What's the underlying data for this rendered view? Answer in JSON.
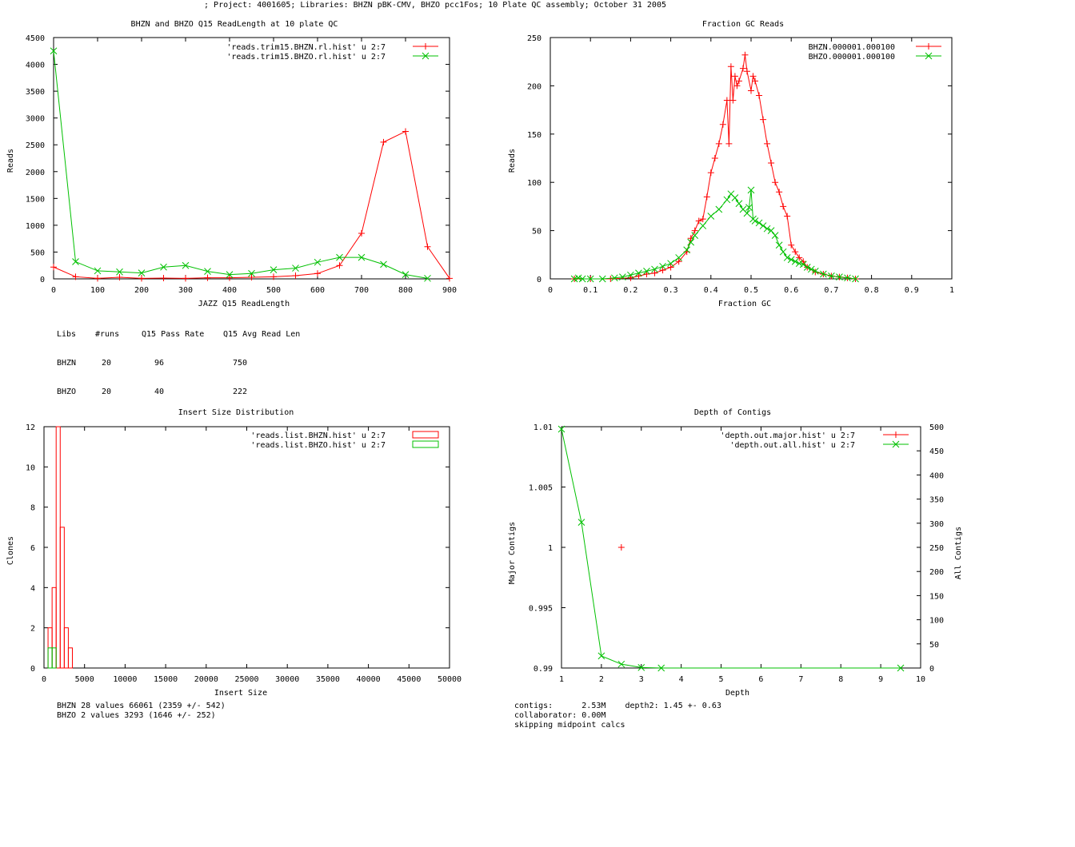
{
  "page_title": "; Project: 4001605; Libraries: BHZN pBK-CMV, BHZO pcc1Fos; 10 Plate QC assembly; October 31 2005",
  "colors": {
    "red": "#ff0000",
    "green": "#00c000",
    "axis": "#000000"
  },
  "chart_data": [
    {
      "type": "line",
      "title": "BHZN and BHZO Q15 ReadLength at 10 plate QC",
      "xlabel": "JAZZ Q15 ReadLength",
      "ylabel": "Reads",
      "xlim": [
        0,
        900
      ],
      "ylim": [
        0,
        4500
      ],
      "xticks": [
        0,
        100,
        200,
        300,
        400,
        500,
        600,
        700,
        800,
        900
      ],
      "yticks": [
        0,
        500,
        1000,
        1500,
        2000,
        2500,
        3000,
        3500,
        4000,
        4500
      ],
      "x": [
        0,
        50,
        100,
        150,
        200,
        250,
        300,
        350,
        400,
        450,
        500,
        550,
        600,
        650,
        700,
        750,
        800,
        850,
        900
      ],
      "series": [
        {
          "name": "'reads.trim15.BHZN.rl.hist' u 2:7",
          "color": "#ff0000",
          "marker": "plus",
          "values": [
            220,
            40,
            10,
            30,
            10,
            15,
            10,
            20,
            20,
            30,
            40,
            60,
            100,
            250,
            850,
            2550,
            2750,
            600,
            10
          ]
        },
        {
          "name": "'reads.trim15.BHZO.rl.hist' u 2:7",
          "color": "#00c000",
          "marker": "cross",
          "values": [
            4250,
            320,
            150,
            130,
            110,
            220,
            250,
            140,
            80,
            100,
            170,
            200,
            310,
            400,
            400,
            270,
            80,
            10,
            null
          ]
        }
      ],
      "stats": {
        "header": [
          "Libs",
          "#runs",
          "Q15 Pass Rate",
          "Q15 Avg Read Len"
        ],
        "rows": [
          [
            "BHZN",
            "20",
            "96",
            "750"
          ],
          [
            "BHZO",
            "20",
            "40",
            "222"
          ]
        ]
      }
    },
    {
      "type": "line",
      "title": "Fraction GC Reads",
      "xlabel": "Fraction GC",
      "ylabel": "Reads",
      "xlim": [
        0,
        1
      ],
      "ylim": [
        0,
        250
      ],
      "xticks": [
        "0",
        "0.1",
        "0.2",
        "0.3",
        "0.4",
        "0.5",
        "0.6",
        "0.7",
        "0.8",
        "0.9",
        "1"
      ],
      "yticks": [
        0,
        50,
        100,
        150,
        200,
        250
      ],
      "series": [
        {
          "name": "BHZN.000001.000100",
          "color": "#ff0000",
          "marker": "plus",
          "points": [
            [
              0.06,
              0
            ],
            [
              0.1,
              0
            ],
            [
              0.15,
              0
            ],
            [
              0.2,
              1
            ],
            [
              0.22,
              3
            ],
            [
              0.24,
              5
            ],
            [
              0.26,
              6
            ],
            [
              0.28,
              9
            ],
            [
              0.3,
              12
            ],
            [
              0.32,
              18
            ],
            [
              0.34,
              28
            ],
            [
              0.35,
              42
            ],
            [
              0.36,
              50
            ],
            [
              0.37,
              60
            ],
            [
              0.38,
              62
            ],
            [
              0.39,
              85
            ],
            [
              0.4,
              110
            ],
            [
              0.41,
              125
            ],
            [
              0.42,
              140
            ],
            [
              0.43,
              160
            ],
            [
              0.44,
              185
            ],
            [
              0.445,
              140
            ],
            [
              0.45,
              220
            ],
            [
              0.455,
              185
            ],
            [
              0.46,
              210
            ],
            [
              0.465,
              200
            ],
            [
              0.47,
              205
            ],
            [
              0.48,
              218
            ],
            [
              0.485,
              232
            ],
            [
              0.49,
              215
            ],
            [
              0.5,
              195
            ],
            [
              0.505,
              210
            ],
            [
              0.51,
              205
            ],
            [
              0.52,
              190
            ],
            [
              0.53,
              165
            ],
            [
              0.54,
              140
            ],
            [
              0.55,
              120
            ],
            [
              0.56,
              100
            ],
            [
              0.57,
              90
            ],
            [
              0.58,
              75
            ],
            [
              0.59,
              65
            ],
            [
              0.6,
              35
            ],
            [
              0.61,
              28
            ],
            [
              0.62,
              22
            ],
            [
              0.63,
              18
            ],
            [
              0.64,
              12
            ],
            [
              0.66,
              7
            ],
            [
              0.68,
              5
            ],
            [
              0.7,
              3
            ],
            [
              0.72,
              2
            ],
            [
              0.74,
              1
            ],
            [
              0.76,
              0
            ]
          ]
        },
        {
          "name": "BHZO.000001.000100",
          "color": "#00c000",
          "marker": "cross",
          "points": [
            [
              0.06,
              0
            ],
            [
              0.07,
              1
            ],
            [
              0.08,
              0
            ],
            [
              0.1,
              0
            ],
            [
              0.13,
              0
            ],
            [
              0.16,
              1
            ],
            [
              0.18,
              2
            ],
            [
              0.2,
              4
            ],
            [
              0.22,
              6
            ],
            [
              0.24,
              8
            ],
            [
              0.26,
              10
            ],
            [
              0.28,
              13
            ],
            [
              0.3,
              16
            ],
            [
              0.32,
              22
            ],
            [
              0.34,
              30
            ],
            [
              0.35,
              38
            ],
            [
              0.36,
              45
            ],
            [
              0.38,
              55
            ],
            [
              0.4,
              65
            ],
            [
              0.42,
              72
            ],
            [
              0.44,
              82
            ],
            [
              0.45,
              88
            ],
            [
              0.46,
              84
            ],
            [
              0.47,
              78
            ],
            [
              0.48,
              72
            ],
            [
              0.49,
              68
            ],
            [
              0.495,
              74
            ],
            [
              0.5,
              92
            ],
            [
              0.505,
              62
            ],
            [
              0.51,
              60
            ],
            [
              0.52,
              58
            ],
            [
              0.53,
              55
            ],
            [
              0.54,
              52
            ],
            [
              0.55,
              50
            ],
            [
              0.56,
              45
            ],
            [
              0.57,
              35
            ],
            [
              0.58,
              28
            ],
            [
              0.59,
              22
            ],
            [
              0.6,
              20
            ],
            [
              0.61,
              18
            ],
            [
              0.62,
              16
            ],
            [
              0.63,
              15
            ],
            [
              0.64,
              12
            ],
            [
              0.65,
              10
            ],
            [
              0.66,
              8
            ],
            [
              0.68,
              5
            ],
            [
              0.7,
              3
            ],
            [
              0.72,
              2
            ],
            [
              0.74,
              1
            ],
            [
              0.76,
              0
            ]
          ]
        }
      ]
    },
    {
      "type": "histogram",
      "title": "Insert Size Distribution",
      "xlabel": "Insert Size",
      "ylabel": "Clones",
      "xlim": [
        0,
        50000
      ],
      "ylim": [
        0,
        12
      ],
      "xticks": [
        0,
        5000,
        10000,
        15000,
        20000,
        25000,
        30000,
        35000,
        40000,
        45000,
        50000
      ],
      "yticks": [
        0,
        2,
        4,
        6,
        8,
        10,
        12
      ],
      "bin_width": 500,
      "series": [
        {
          "name": "'reads.list.BHZN.hist' u 2:7",
          "color": "#ff0000",
          "bins": [
            [
              500,
              0
            ],
            [
              1000,
              2
            ],
            [
              1500,
              4
            ],
            [
              2000,
              12
            ],
            [
              2500,
              7
            ],
            [
              3000,
              2
            ],
            [
              3500,
              1
            ],
            [
              4000,
              0
            ]
          ]
        },
        {
          "name": "'reads.list.BHZO.hist' u 2:7",
          "color": "#00c000",
          "bins": [
            [
              1000,
              1
            ],
            [
              1500,
              1
            ],
            [
              2000,
              0
            ]
          ]
        }
      ],
      "notes": [
        "BHZN 28 values 66061 (2359 +/- 542)",
        "BHZO 2 values 3293 (1646 +/- 252)"
      ]
    },
    {
      "type": "line",
      "title": "Depth of Contigs",
      "xlabel": "Depth",
      "ylabel": "Major Contigs",
      "y2label": "All Contigs",
      "xlim": [
        1,
        10
      ],
      "ylim": [
        0.99,
        1.01
      ],
      "y2lim": [
        0,
        500
      ],
      "xticks": [
        1,
        2,
        3,
        4,
        5,
        6,
        7,
        8,
        9,
        10
      ],
      "yticks": [
        "0.99",
        "0.995",
        "1",
        "1.005",
        "1.01"
      ],
      "y2ticks": [
        0,
        50,
        100,
        150,
        200,
        250,
        300,
        350,
        400,
        450,
        500
      ],
      "series": [
        {
          "name": "'depth.out.major.hist' u 2:7",
          "color": "#ff0000",
          "marker": "plus",
          "axis": "y1",
          "points": [
            [
              2.5,
              1.0
            ]
          ]
        },
        {
          "name": "'depth.out.all.hist' u 2:7",
          "color": "#00c000",
          "marker": "cross",
          "axis": "y2",
          "points": [
            [
              1,
              495
            ],
            [
              1.5,
              302
            ],
            [
              2,
              25
            ],
            [
              2.5,
              8
            ],
            [
              3,
              1
            ],
            [
              3.5,
              0
            ],
            [
              9.5,
              0
            ]
          ]
        }
      ],
      "notes": [
        "contigs:      2.53M    depth2: 1.45 +- 0.63",
        "collaborator: 0.00M",
        "skipping midpoint calcs"
      ]
    }
  ]
}
